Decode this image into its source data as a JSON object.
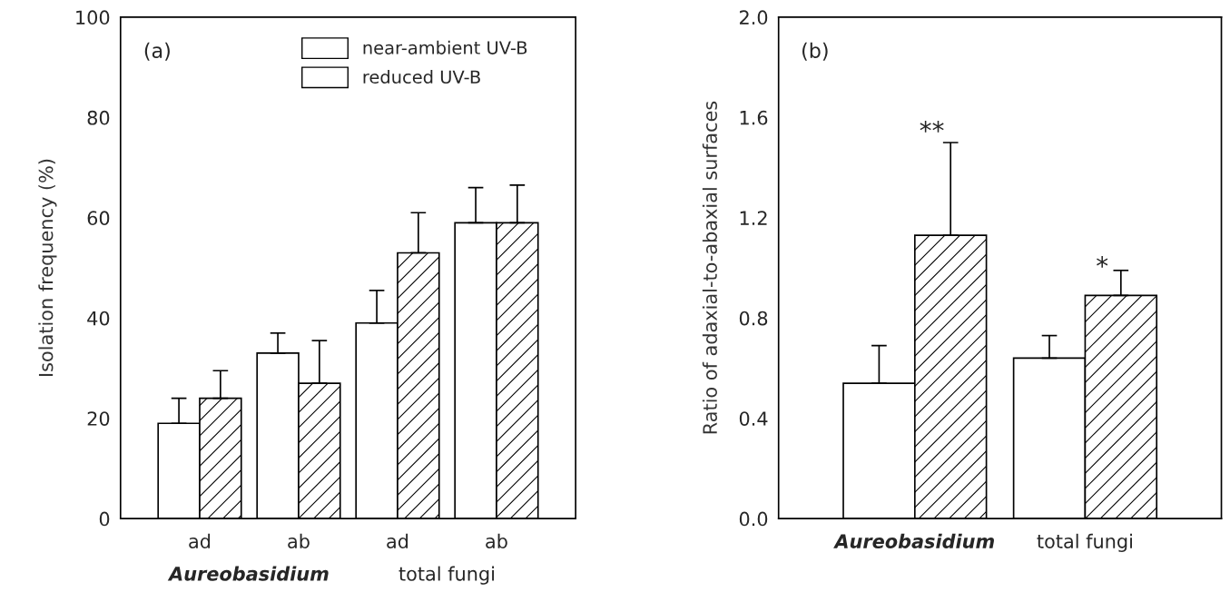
{
  "chart_data": [
    {
      "type": "bar",
      "ylabel": "Isolation frequency (%)",
      "categories": [
        "ad",
        "ab",
        "ad",
        "ab"
      ],
      "series": [
        {
          "name": "near-ambient UV-B",
          "color": "#ffffff",
          "values": [
            19,
            33,
            39,
            59
          ],
          "errors": [
            5,
            4,
            6.5,
            7
          ]
        },
        {
          "name": "reduced UV-B",
          "color": "#ffffff",
          "values": [
            24,
            27,
            53,
            59
          ],
          "errors": [
            5.5,
            8.5,
            8,
            7.5
          ]
        }
      ],
      "ylim": [
        0,
        100
      ],
      "yticks": [
        0,
        20,
        40,
        60,
        80,
        100
      ],
      "legend": "top right",
      "grid": false,
      "annotations": [
        "(a)",
        "Aureobasidium",
        "total fungi"
      ]
    },
    {
      "type": "bar",
      "ylabel": "Ratio of adaxial-to-abaxial surfaces",
      "categories": [
        "Aureobasidium",
        "total fungi"
      ],
      "series": [
        {
          "color": "#ffffff",
          "values": [
            0.54,
            0.64
          ],
          "errors": [
            0.15,
            0.09
          ]
        },
        {
          "color": "#ffffff",
          "values": [
            1.13,
            0.89
          ],
          "errors": [
            0.37,
            0.1
          ]
        }
      ],
      "ylim": [
        0,
        2
      ],
      "yticks": [
        {
          "value": 0,
          "label": "0.0"
        },
        0.4,
        0.8,
        1.2,
        1.6,
        {
          "value": 2,
          "label": "2.0"
        }
      ],
      "grid": false,
      "annotations": [
        "(b)",
        "**",
        "*"
      ]
    }
  ]
}
